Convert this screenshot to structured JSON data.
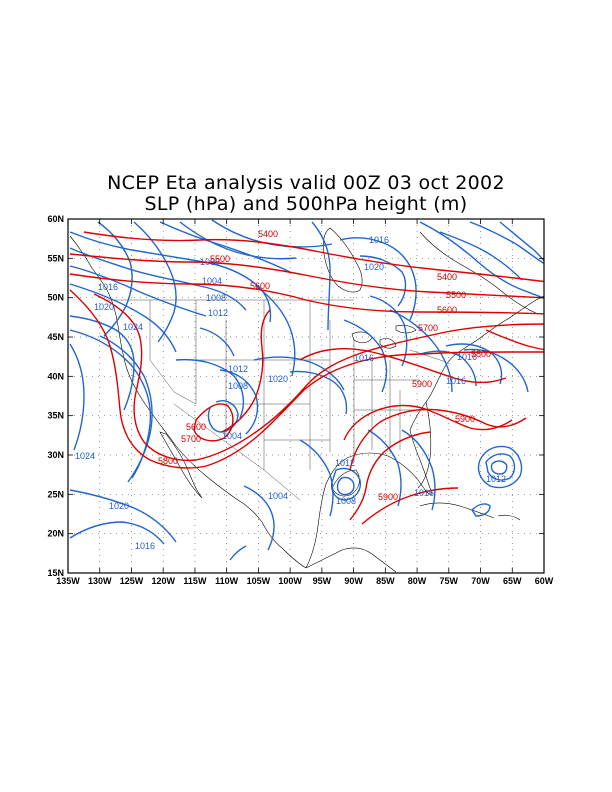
{
  "title": {
    "line1": "NCEP Eta analysis valid 00Z 03 oct 2002",
    "line2": "SLP (hPa) and 500hPa height (m)"
  },
  "colors": {
    "slp": "#1f5fcc",
    "height": "#dd0000",
    "coast": "#000000",
    "grid": "#666666"
  },
  "axes": {
    "lat_labels": [
      "60N",
      "55N",
      "50N",
      "45N",
      "40N",
      "35N",
      "30N",
      "25N",
      "20N",
      "15N"
    ],
    "lon_labels": [
      "135W",
      "130W",
      "125W",
      "120W",
      "115W",
      "110W",
      "105W",
      "100W",
      "95W",
      "90W",
      "85W",
      "80W",
      "75W",
      "70W",
      "65W",
      "60W"
    ],
    "lon_range": [
      -135,
      -60
    ],
    "lat_range": [
      15,
      60
    ]
  },
  "contours": {
    "slp_labels": [
      "1016",
      "1020",
      "1000",
      "1004",
      "1008",
      "1012",
      "1016",
      "1020",
      "1024",
      "1012",
      "1008",
      "1020",
      "1016",
      "1016",
      "1016",
      "1012",
      "1012",
      "1024",
      "1004",
      "1012",
      "1008",
      "1004",
      "1020",
      "1016",
      "1016",
      "1012"
    ],
    "height_labels": [
      "5400",
      "5500",
      "5600",
      "5400",
      "5500",
      "5600",
      "5700",
      "5800",
      "5900",
      "5900",
      "5600",
      "5700",
      "5800",
      "5900"
    ]
  }
}
